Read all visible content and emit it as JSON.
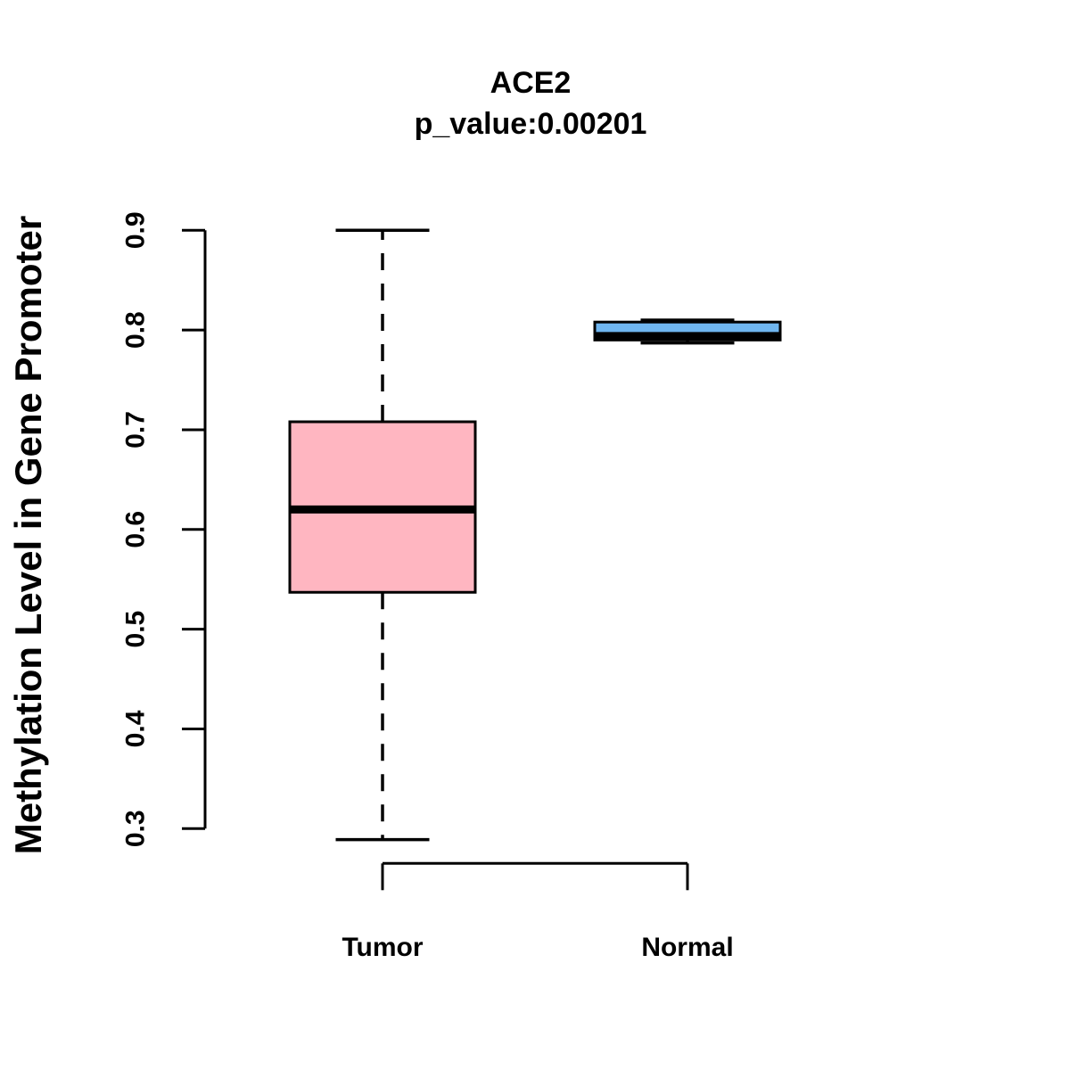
{
  "page": {
    "background": "#ffffff"
  },
  "chart_data": {
    "type": "boxplot",
    "title": "ACE2",
    "subtitle": "p_value:0.00201",
    "ylabel": "Methylation Level in Gene Promoter",
    "xlabel": "",
    "ylim": [
      0.27,
      0.92
    ],
    "yticks": [
      0.3,
      0.4,
      0.5,
      0.6,
      0.7,
      0.8,
      0.9
    ],
    "ytick_labels": [
      "0.3",
      "0.4",
      "0.5",
      "0.6",
      "0.7",
      "0.8",
      "0.9"
    ],
    "categories": [
      "Tumor",
      "Normal"
    ],
    "grid": false,
    "legend": "none",
    "series": [
      {
        "name": "Tumor",
        "fill": "#FFB6C1",
        "whisker_low": 0.289,
        "q1": 0.537,
        "median": 0.62,
        "q3": 0.708,
        "whisker_high": 0.9
      },
      {
        "name": "Normal",
        "fill": "#6FB5EF",
        "whisker_low": 0.787,
        "q1": 0.79,
        "median": 0.794,
        "q3": 0.808,
        "whisker_high": 0.81
      }
    ],
    "style": {
      "box_border_color": "#000000",
      "median_color": "#000000",
      "axis_color": "#000000",
      "whisker_style": "dashed",
      "background": "#ffffff"
    }
  }
}
